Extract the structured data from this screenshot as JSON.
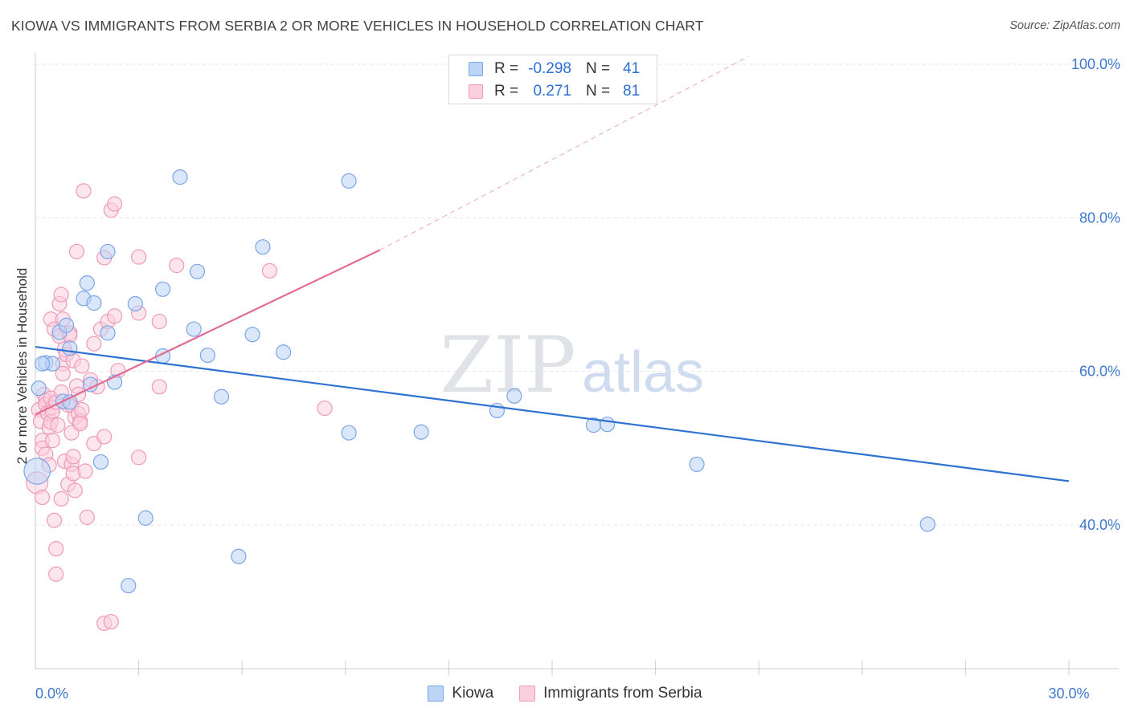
{
  "title": "KIOWA VS IMMIGRANTS FROM SERBIA 2 OR MORE VEHICLES IN HOUSEHOLD CORRELATION CHART",
  "source": "Source: ZipAtlas.com",
  "watermark": {
    "zip": "ZIP",
    "atlas": "atlas"
  },
  "stats": [
    {
      "r_label": "R =",
      "r": "-0.298",
      "n_label": "N =",
      "n": "41"
    },
    {
      "r_label": "R =",
      "r": "0.271",
      "n_label": "N =",
      "n": "81"
    }
  ],
  "colors": {
    "blue_fill": "#bcd4f6",
    "blue_stroke": "#7aa5e6",
    "blue_line": "#2e72d2",
    "pink_fill": "#fbd0de",
    "pink_stroke": "#ef9ab7",
    "pink_line": "#e46b95",
    "grid": "#e6e6e6",
    "tick_label": "#3f78d0"
  },
  "chart_data": {
    "type": "scatter",
    "title": "KIOWA VS IMMIGRANTS FROM SERBIA 2 OR MORE VEHICLES IN HOUSEHOLD CORRELATION CHART",
    "xlabel": "",
    "ylabel": "2 or more Vehicles in Household",
    "xlim": [
      0,
      30
    ],
    "ylim": [
      20,
      102
    ],
    "x_tick_labels": [
      {
        "value": 0,
        "label": "0.0%"
      },
      {
        "value": 30,
        "label": "30.0%"
      }
    ],
    "x_minor_ticks": [
      3,
      6,
      9,
      12,
      15,
      18,
      21,
      24,
      27,
      30
    ],
    "y_tick_labels": [
      {
        "value": 40,
        "label": "40.0%"
      },
      {
        "value": 60,
        "label": "60.0%"
      },
      {
        "value": 80,
        "label": "80.0%"
      },
      {
        "value": 100,
        "label": "100.0%"
      }
    ],
    "grid": true,
    "legend": "bottom-center",
    "series": [
      {
        "name": "Kiowa",
        "color": "blue",
        "n": 41,
        "r": -0.298,
        "trend": {
          "x": [
            0,
            30
          ],
          "y": [
            63.2,
            45.7
          ],
          "style": "solid"
        },
        "points": [
          [
            0.05,
            47.0,
            1.8
          ],
          [
            0.1,
            57.8,
            1
          ],
          [
            0.3,
            61.1,
            1
          ],
          [
            0.5,
            61.0,
            1
          ],
          [
            0.7,
            65.1,
            1
          ],
          [
            0.8,
            56.1,
            1
          ],
          [
            0.9,
            66.0,
            1
          ],
          [
            1.0,
            56.0,
            1
          ],
          [
            1.0,
            63.0,
            1
          ],
          [
            1.5,
            71.5,
            1
          ],
          [
            1.4,
            69.5,
            1
          ],
          [
            1.7,
            68.9,
            1
          ],
          [
            1.6,
            58.3,
            1
          ],
          [
            2.1,
            75.6,
            1
          ],
          [
            2.1,
            65.0,
            1
          ],
          [
            2.3,
            58.6,
            1
          ],
          [
            1.9,
            48.2,
            1
          ],
          [
            2.7,
            32.1,
            1
          ],
          [
            2.9,
            68.8,
            1
          ],
          [
            3.2,
            40.9,
            1
          ],
          [
            3.7,
            70.7,
            1
          ],
          [
            3.7,
            62.0,
            1
          ],
          [
            4.2,
            85.3,
            1
          ],
          [
            4.6,
            65.5,
            1
          ],
          [
            4.7,
            73.0,
            1
          ],
          [
            5.0,
            62.1,
            1
          ],
          [
            5.4,
            56.7,
            1
          ],
          [
            5.9,
            35.9,
            1
          ],
          [
            6.3,
            64.8,
            1
          ],
          [
            6.6,
            76.2,
            1
          ],
          [
            7.2,
            62.5,
            1
          ],
          [
            9.1,
            52.0,
            1
          ],
          [
            9.1,
            84.8,
            1
          ],
          [
            11.2,
            52.1,
            1
          ],
          [
            13.4,
            54.9,
            1
          ],
          [
            13.9,
            56.8,
            1
          ],
          [
            16.2,
            53.0,
            1
          ],
          [
            16.6,
            53.1,
            1
          ],
          [
            19.2,
            47.9,
            1
          ],
          [
            25.9,
            40.1,
            1
          ],
          [
            0.2,
            61.0,
            1
          ]
        ]
      },
      {
        "name": "Immigrants from Serbia",
        "color": "pink",
        "n": 81,
        "r": 0.271,
        "trend": {
          "x": [
            0,
            10.0
          ],
          "y": [
            54.4,
            75.8
          ],
          "style": "solid"
        },
        "trend_extension": {
          "x": [
            10.0,
            20.7
          ],
          "y": [
            75.8,
            101.0
          ],
          "style": "dashed"
        },
        "points": [
          [
            0.05,
            45.5,
            1.5
          ],
          [
            0.1,
            55.0,
            1
          ],
          [
            0.15,
            53.5,
            1
          ],
          [
            0.2,
            51.0,
            1
          ],
          [
            0.2,
            50.0,
            1
          ],
          [
            0.2,
            43.6,
            1
          ],
          [
            0.25,
            57.0,
            1
          ],
          [
            0.3,
            56.2,
            1
          ],
          [
            0.3,
            55.7,
            1
          ],
          [
            0.3,
            49.2,
            1
          ],
          [
            0.35,
            54.6,
            1
          ],
          [
            0.4,
            52.7,
            1
          ],
          [
            0.4,
            47.8,
            1
          ],
          [
            0.45,
            66.8,
            1
          ],
          [
            0.45,
            56.5,
            1
          ],
          [
            0.45,
            53.4,
            1
          ],
          [
            0.5,
            55.3,
            1
          ],
          [
            0.5,
            54.8,
            1
          ],
          [
            0.5,
            51.0,
            1
          ],
          [
            0.55,
            65.5,
            1
          ],
          [
            0.55,
            40.6,
            1
          ],
          [
            0.6,
            56.0,
            1
          ],
          [
            0.6,
            36.9,
            1
          ],
          [
            0.6,
            33.6,
            1
          ],
          [
            0.65,
            53.0,
            1
          ],
          [
            0.7,
            68.8,
            1
          ],
          [
            0.7,
            64.6,
            1
          ],
          [
            0.75,
            70.0,
            1
          ],
          [
            0.75,
            57.3,
            1
          ],
          [
            0.75,
            43.4,
            1
          ],
          [
            0.8,
            66.8,
            1
          ],
          [
            0.8,
            61.0,
            1
          ],
          [
            0.8,
            59.7,
            1
          ],
          [
            0.85,
            62.9,
            1
          ],
          [
            0.85,
            48.3,
            1
          ],
          [
            0.9,
            62.2,
            1
          ],
          [
            0.95,
            55.6,
            1
          ],
          [
            0.95,
            45.3,
            1
          ],
          [
            1.0,
            65.0,
            1
          ],
          [
            1.0,
            64.7,
            1
          ],
          [
            1.05,
            55.6,
            1
          ],
          [
            1.05,
            52.0,
            1
          ],
          [
            1.05,
            47.9,
            1
          ],
          [
            1.1,
            61.4,
            1
          ],
          [
            1.1,
            48.9,
            1
          ],
          [
            1.1,
            46.7,
            1
          ],
          [
            1.15,
            44.5,
            1
          ],
          [
            1.15,
            54.0,
            1
          ],
          [
            1.2,
            75.6,
            1
          ],
          [
            1.2,
            58.1,
            1
          ],
          [
            1.25,
            57.0,
            1
          ],
          [
            1.25,
            54.5,
            1
          ],
          [
            1.3,
            53.5,
            1
          ],
          [
            1.3,
            53.2,
            1
          ],
          [
            1.35,
            55.0,
            1
          ],
          [
            1.35,
            60.7,
            1
          ],
          [
            1.4,
            83.5,
            1
          ],
          [
            1.45,
            47.0,
            1
          ],
          [
            1.5,
            41.0,
            1
          ],
          [
            1.6,
            58.9,
            1
          ],
          [
            1.7,
            63.6,
            1
          ],
          [
            1.7,
            50.6,
            1
          ],
          [
            1.8,
            58.0,
            1
          ],
          [
            1.9,
            65.5,
            1
          ],
          [
            2.0,
            27.2,
            1
          ],
          [
            2.0,
            74.8,
            1
          ],
          [
            2.0,
            51.5,
            1
          ],
          [
            2.1,
            66.5,
            1
          ],
          [
            2.2,
            27.4,
            1
          ],
          [
            2.2,
            81.0,
            1
          ],
          [
            2.3,
            81.8,
            1
          ],
          [
            2.3,
            67.2,
            1
          ],
          [
            2.4,
            60.1,
            1
          ],
          [
            3.0,
            74.9,
            1
          ],
          [
            3.0,
            48.8,
            1
          ],
          [
            3.0,
            67.6,
            1
          ],
          [
            3.6,
            66.5,
            1
          ],
          [
            3.6,
            58.0,
            1
          ],
          [
            4.1,
            73.8,
            1
          ],
          [
            6.8,
            73.1,
            1
          ],
          [
            8.4,
            55.2,
            1
          ]
        ]
      }
    ]
  },
  "legend_items": [
    {
      "label": "Kiowa",
      "color": "blue"
    },
    {
      "label": "Immigrants from Serbia",
      "color": "pink"
    }
  ]
}
